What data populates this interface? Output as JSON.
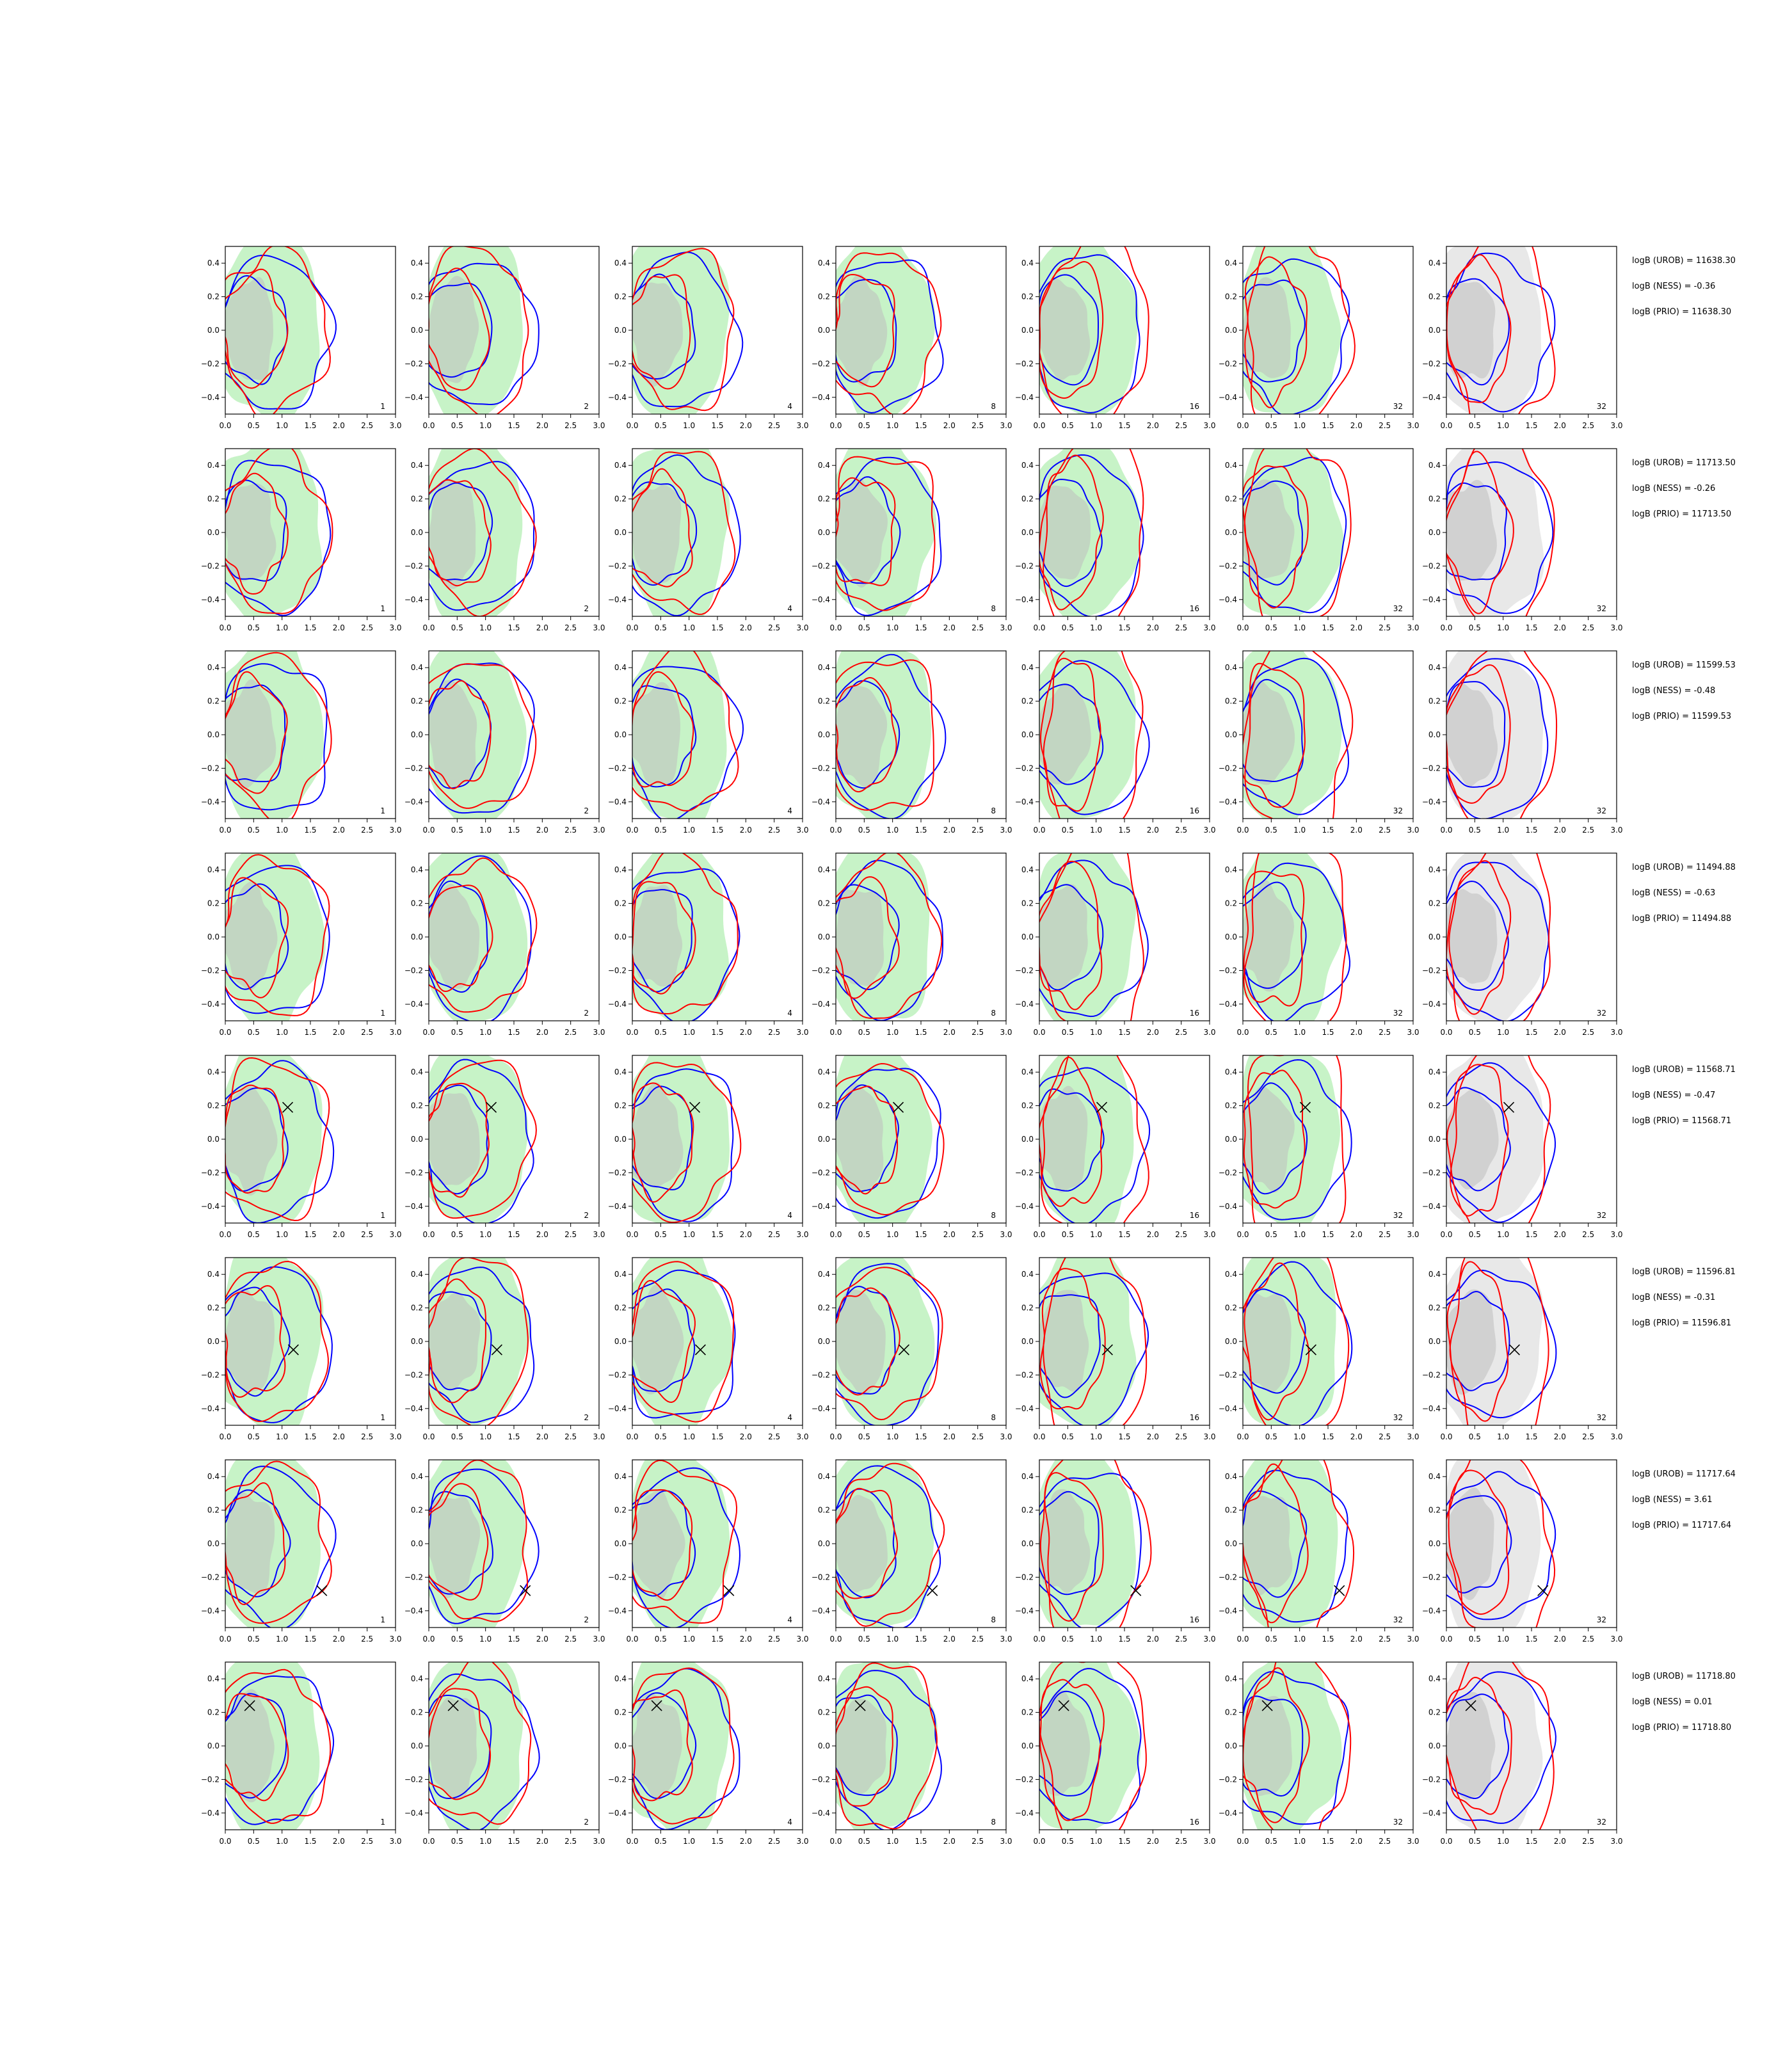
{
  "colors": {
    "green_fill": "#90e890",
    "gray_fill": "#bdbdbd",
    "blue_line": "#0000ff",
    "red_line": "#ff0000",
    "marker": "#000000"
  },
  "chart_data": {
    "type": "contour-grid",
    "rows": 8,
    "cols": 7,
    "xlim": [
      0,
      3
    ],
    "ylim": [
      -0.5,
      0.5
    ],
    "x_ticks": [
      0.0,
      0.5,
      1.0,
      1.5,
      2.0,
      2.5,
      3.0
    ],
    "x_tick_labels": [
      "0.0",
      "0.5",
      "1.0",
      "1.5",
      "2.0",
      "2.5",
      "3.0"
    ],
    "y_ticks": [
      0.4,
      0.2,
      0.0,
      -0.2,
      -0.4
    ],
    "y_tick_labels": [
      "0.4",
      "0.2",
      "0.0",
      "−0.2",
      "−0.4"
    ],
    "panel_labels": [
      "1",
      "2",
      "4",
      "8",
      "16",
      "32",
      "32"
    ],
    "rows_data": [
      {
        "logB": [
          "logB (UROB) = 11638.30",
          "logB (NESS) = -0.36",
          "logB (PRIO) = 11638.30"
        ],
        "marker": null
      },
      {
        "logB": [
          "logB (UROB) = 11713.50",
          "logB (NESS) = -0.26",
          "logB (PRIO) = 11713.50"
        ],
        "marker": null
      },
      {
        "logB": [
          "logB (UROB) = 11599.53",
          "logB (NESS) = -0.48",
          "logB (PRIO) = 11599.53"
        ],
        "marker": null
      },
      {
        "logB": [
          "logB (UROB) = 11494.88",
          "logB (NESS) = -0.63",
          "logB (PRIO) = 11494.88"
        ],
        "marker": null
      },
      {
        "logB": [
          "logB (UROB) = 11568.71",
          "logB (NESS) = -0.47",
          "logB (PRIO) = 11568.71"
        ],
        "marker": [
          1.1,
          0.19
        ]
      },
      {
        "logB": [
          "logB (UROB) = 11596.81",
          "logB (NESS) = -0.31",
          "logB (PRIO) = 11596.81"
        ],
        "marker": [
          1.2,
          -0.05
        ]
      },
      {
        "logB": [
          "logB (UROB) = 11717.64",
          "logB (NESS) = 3.61",
          "logB (PRIO) = 11717.64"
        ],
        "marker": [
          1.7,
          -0.28
        ]
      },
      {
        "logB": [
          "logB (UROB) = 11718.80",
          "logB (NESS) = 0.01",
          "logB (PRIO) = 11718.80"
        ],
        "marker": [
          0.43,
          0.24
        ]
      }
    ]
  }
}
